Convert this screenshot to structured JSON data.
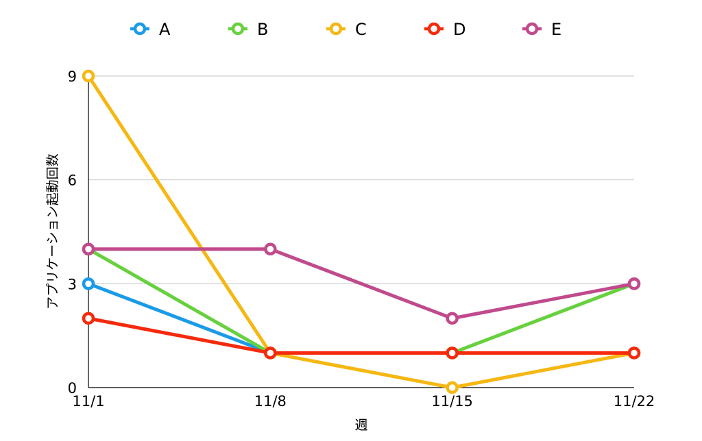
{
  "chart_data": {
    "type": "line",
    "categories": [
      "11/1",
      "11/8",
      "11/15",
      "11/22"
    ],
    "xlabel": "週",
    "ylabel": "アプリケーション起動回数",
    "ylim": [
      0,
      9
    ],
    "yticks": [
      0,
      3,
      6,
      9
    ],
    "grid": true,
    "legend_position": "top",
    "series": [
      {
        "name": "A",
        "color": "#1a9be8",
        "values": [
          3,
          1,
          1,
          1
        ]
      },
      {
        "name": "B",
        "color": "#66d13d",
        "values": [
          4,
          1,
          1,
          3
        ]
      },
      {
        "name": "C",
        "color": "#f5b712",
        "values": [
          9,
          1,
          0,
          1
        ]
      },
      {
        "name": "D",
        "color": "#f52a0c",
        "values": [
          2,
          1,
          1,
          1
        ]
      },
      {
        "name": "E",
        "color": "#c04a8c",
        "values": [
          4,
          4,
          2,
          3
        ]
      }
    ]
  }
}
